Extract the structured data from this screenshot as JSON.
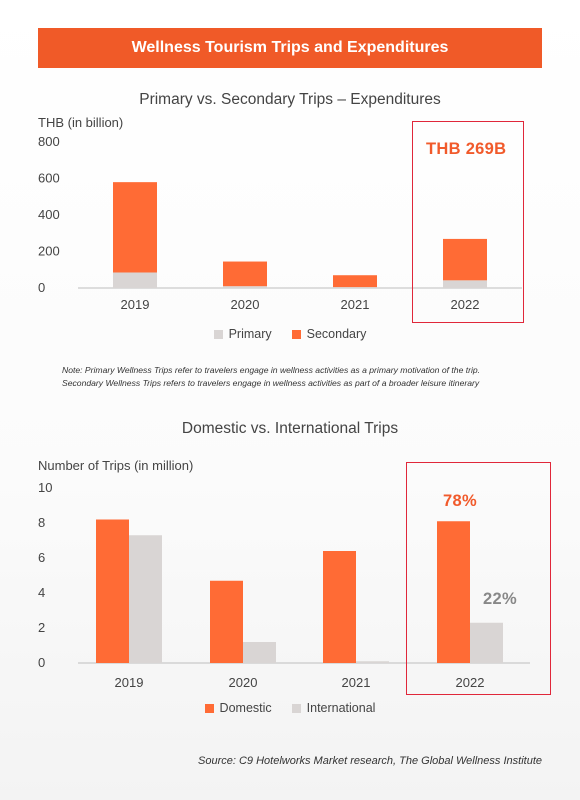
{
  "header": {
    "title": "Wellness Tourism Trips and Expenditures"
  },
  "colors": {
    "orange": "#ff6b35",
    "gray": "#d9d5d4",
    "accent": "#f15a2b",
    "highlight_border": "#e0273a"
  },
  "chart1": {
    "title": "Primary vs. Secondary Trips – Expenditures",
    "ylabel": "THB (in billion)",
    "callout": "THB 269B",
    "legend": [
      "Primary",
      "Secondary"
    ]
  },
  "note": {
    "line1": "Note: Primary Wellness Trips refer to travelers engage in wellness activities as a primary motivation of the trip.",
    "line2": "Secondary Wellness Trips refers to travelers engage in wellness activities as part of a broader leisure itinerary"
  },
  "chart2": {
    "title": "Domestic vs. International Trips",
    "ylabel": "Number of Trips (in million)",
    "callout_domestic": "78%",
    "callout_international": "22%",
    "legend": [
      "Domestic",
      "International"
    ]
  },
  "source": "Source: C9 Hotelworks Market research, The Global Wellness Institute",
  "chart_data": [
    {
      "type": "bar",
      "stacked": true,
      "title": "Primary vs. Secondary Trips – Expenditures",
      "ylabel": "THB (in billion)",
      "categories": [
        "2019",
        "2020",
        "2021",
        "2022"
      ],
      "series": [
        {
          "name": "Primary",
          "values": [
            85,
            10,
            5,
            42
          ]
        },
        {
          "name": "Secondary",
          "values": [
            495,
            135,
            65,
            227
          ]
        }
      ],
      "ylim": [
        0,
        800
      ],
      "yticks": [
        0,
        200,
        400,
        600,
        800
      ],
      "grid": false,
      "legend_position": "bottom",
      "highlight": "2022"
    },
    {
      "type": "bar",
      "stacked": false,
      "title": "Domestic vs. International Trips",
      "ylabel": "Number of Trips (in million)",
      "categories": [
        "2019",
        "2020",
        "2021",
        "2022"
      ],
      "series": [
        {
          "name": "Domestic",
          "values": [
            8.2,
            4.7,
            6.4,
            8.1
          ]
        },
        {
          "name": "International",
          "values": [
            7.3,
            1.2,
            0.1,
            2.3
          ]
        }
      ],
      "ylim": [
        0,
        10
      ],
      "yticks": [
        0,
        2,
        4,
        6,
        8,
        10
      ],
      "grid": false,
      "legend_position": "bottom",
      "highlight": "2022"
    }
  ]
}
